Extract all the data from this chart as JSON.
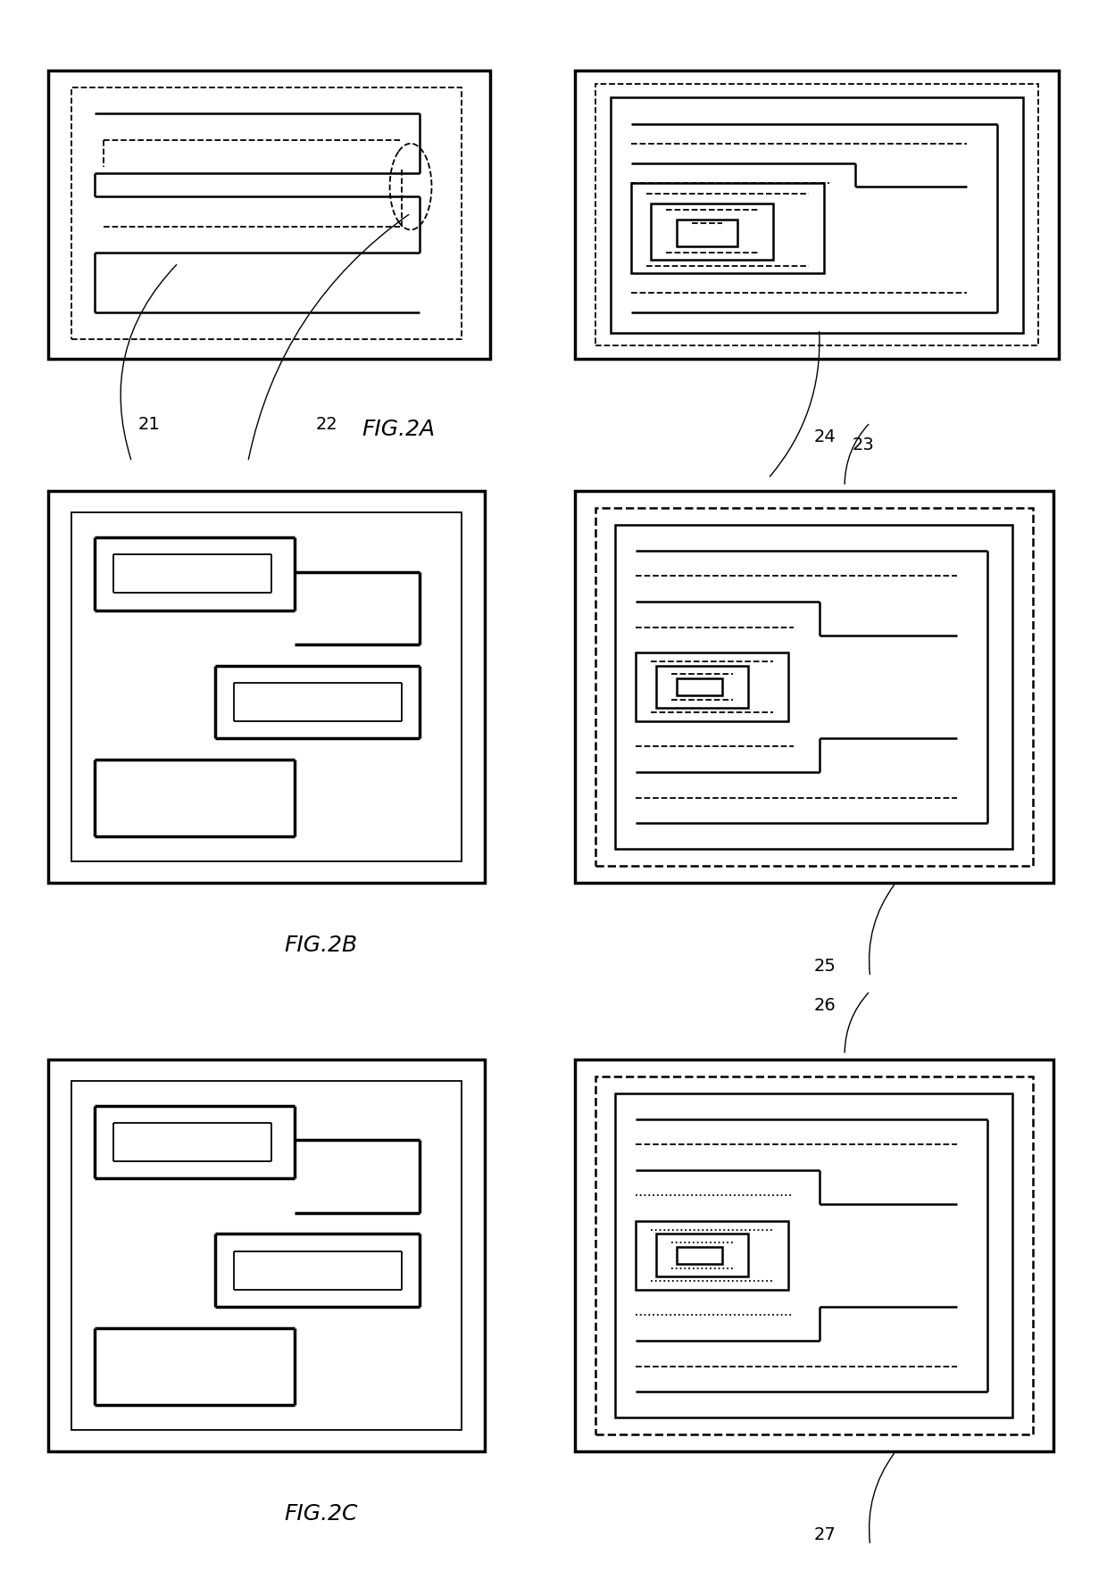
{
  "bg_color": "#ffffff",
  "line_color": "#000000",
  "lw_thick": 2.5,
  "lw_med": 1.8,
  "lw_thin": 1.3,
  "lw_dash": 1.3,
  "fig2a_label": "FIG.2A",
  "fig2b_label": "FIG.2B",
  "fig2c_label": "FIG.2C",
  "font_size_fig": 18,
  "font_size_callout": 14
}
